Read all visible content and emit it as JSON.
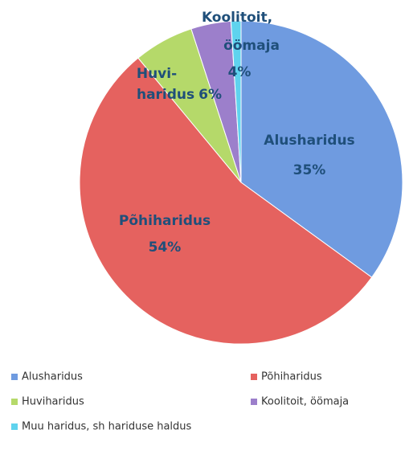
{
  "chart_data": {
    "type": "pie",
    "categories": [
      "Alusharidus",
      "Põhiharidus",
      "Huviharidus",
      "Koolitoit, öömaja",
      "Muu haridus, sh hariduse haldus"
    ],
    "values": [
      35,
      54,
      6,
      4,
      1
    ],
    "value_labels": [
      "35%",
      "54%",
      "6%",
      "4%",
      null
    ],
    "slice_label_lines": [
      [
        "Alusharidus"
      ],
      [
        "Põhiharidus"
      ],
      [
        "Huvi-",
        "haridus"
      ],
      [
        "Koolitoit,",
        "öömaja"
      ],
      null
    ],
    "colors": [
      "#6f9be0",
      "#e5625f",
      "#b5d96a",
      "#9c7fcb",
      "#5fd3ee"
    ],
    "legend": "bottom"
  }
}
